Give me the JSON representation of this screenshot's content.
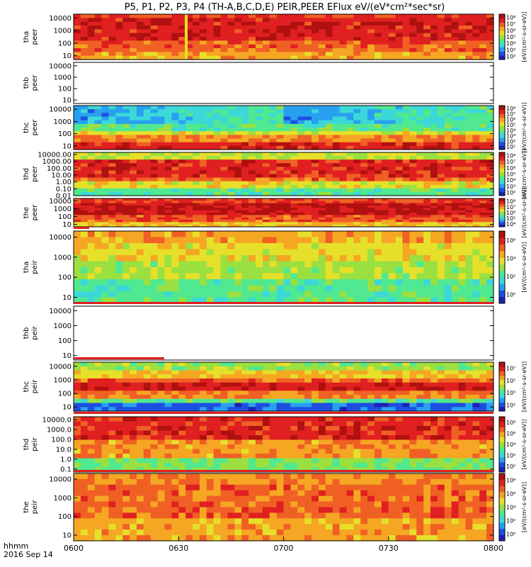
{
  "title": "P5, P1, P2, P3, P4 (TH-A,B,C,D,E) PEIR,PEER EFlux eV/(eV*cm²*sec*sr)",
  "footer": {
    "time_label": "hhmm",
    "date_label": "2016 Sep 14"
  },
  "colorbar_label_text": "[eV/(cm²-s-sr-eV)]",
  "chart_data": [
    {
      "type": "heatmap",
      "probe": "tha",
      "species": "peer",
      "ylabel": [
        "tha",
        "peer"
      ],
      "ylog": true,
      "yticks": [
        "10",
        "100",
        "1000",
        "10000"
      ],
      "ylim": [
        5,
        20000
      ],
      "cbar_ticks": [
        "10²",
        "10³",
        "10⁴",
        "10⁵",
        "10⁶",
        "10⁷",
        "10⁸"
      ],
      "palette": "eer",
      "has_data": true,
      "spike_at": "0632"
    },
    {
      "type": "heatmap",
      "probe": "thb",
      "species": "peer",
      "ylabel": [
        "thb",
        "peer"
      ],
      "ylog": true,
      "yticks": [
        "10",
        "100",
        "1000",
        "10000"
      ],
      "ylim": [
        5,
        20000
      ],
      "cbar_ticks": [],
      "palette": "none",
      "has_data": false
    },
    {
      "type": "heatmap",
      "probe": "thc",
      "species": "peer",
      "ylabel": [
        "thc",
        "peer"
      ],
      "ylog": true,
      "yticks": [
        "10",
        "100",
        "1000",
        "10000"
      ],
      "ylim": [
        5,
        20000
      ],
      "cbar_ticks": [
        "10¹",
        "10²",
        "10³",
        "10⁴",
        "10⁵",
        "10⁶",
        "10⁷",
        "10⁸"
      ],
      "palette": "thc_eer",
      "has_data": true
    },
    {
      "type": "heatmap",
      "probe": "thd",
      "species": "peer",
      "ylabel": [
        "thd",
        "peer"
      ],
      "ylog": true,
      "yticks": [
        "0.01",
        "0.10",
        "1.00",
        "10.00",
        "100.00",
        "1000.00",
        "10000.00"
      ],
      "ylim": [
        0.01,
        20000
      ],
      "cbar_ticks": [
        "10²",
        "10³",
        "10⁴",
        "10⁵",
        "10⁶",
        "10⁷",
        "10⁸"
      ],
      "palette": "thd_eer",
      "has_data": true
    },
    {
      "type": "heatmap",
      "probe": "the",
      "species": "peer",
      "ylabel": [
        "the",
        "peer"
      ],
      "ylog": true,
      "yticks": [
        "10",
        "100",
        "1000",
        "10000"
      ],
      "ylim": [
        5,
        20000
      ],
      "cbar_ticks": [
        "10⁴",
        "10⁵",
        "10⁶",
        "10⁷",
        "10⁸"
      ],
      "palette": "the_eer",
      "has_data": true
    },
    {
      "type": "heatmap",
      "probe": "tha",
      "species": "peir",
      "ylabel": [
        "tha",
        "peir"
      ],
      "ylog": true,
      "yticks": [
        "10",
        "100",
        "1000",
        "10000"
      ],
      "ylim": [
        5,
        20000
      ],
      "cbar_ticks": [
        "10⁰",
        "10²",
        "10⁴",
        "10⁶"
      ],
      "palette": "eir",
      "has_data": true
    },
    {
      "type": "heatmap",
      "probe": "thb",
      "species": "peir",
      "ylabel": [
        "thb",
        "peir"
      ],
      "ylog": true,
      "yticks": [
        "10",
        "100",
        "1000",
        "10000"
      ],
      "ylim": [
        5,
        20000
      ],
      "cbar_ticks": [],
      "palette": "none",
      "has_data": false
    },
    {
      "type": "heatmap",
      "probe": "thc",
      "species": "peir",
      "ylabel": [
        "thc",
        "peir"
      ],
      "ylog": true,
      "yticks": [
        "10",
        "100",
        "1000",
        "10000"
      ],
      "ylim": [
        5,
        20000
      ],
      "cbar_ticks": [
        "10¹",
        "10³",
        "10⁵",
        "10⁷"
      ],
      "palette": "thc_eir",
      "has_data": true
    },
    {
      "type": "heatmap",
      "probe": "thd",
      "species": "peir",
      "ylabel": [
        "thd",
        "peir"
      ],
      "ylog": true,
      "yticks": [
        "0.1",
        "1.0",
        "10.0",
        "100.0",
        "1000.0",
        "10000.0"
      ],
      "ylim": [
        0.05,
        20000
      ],
      "cbar_ticks": [
        "10⁰",
        "10²",
        "10⁴",
        "10⁶",
        "10⁸"
      ],
      "palette": "thd_eir",
      "has_data": true
    },
    {
      "type": "heatmap",
      "probe": "the",
      "species": "peir",
      "ylabel": [
        "the",
        "peir"
      ],
      "ylog": true,
      "yticks": [
        "10",
        "100",
        "1000",
        "10000"
      ],
      "ylim": [
        5,
        20000
      ],
      "cbar_ticks": [
        "10⁰",
        "10²",
        "10⁴",
        "10⁶",
        "10⁸"
      ],
      "palette": "the_eir",
      "has_data": true
    }
  ],
  "x_axis": {
    "ticks": [
      "0600",
      "0630",
      "0700",
      "0730",
      "0800"
    ],
    "xlim": [
      "0600",
      "0800"
    ]
  }
}
